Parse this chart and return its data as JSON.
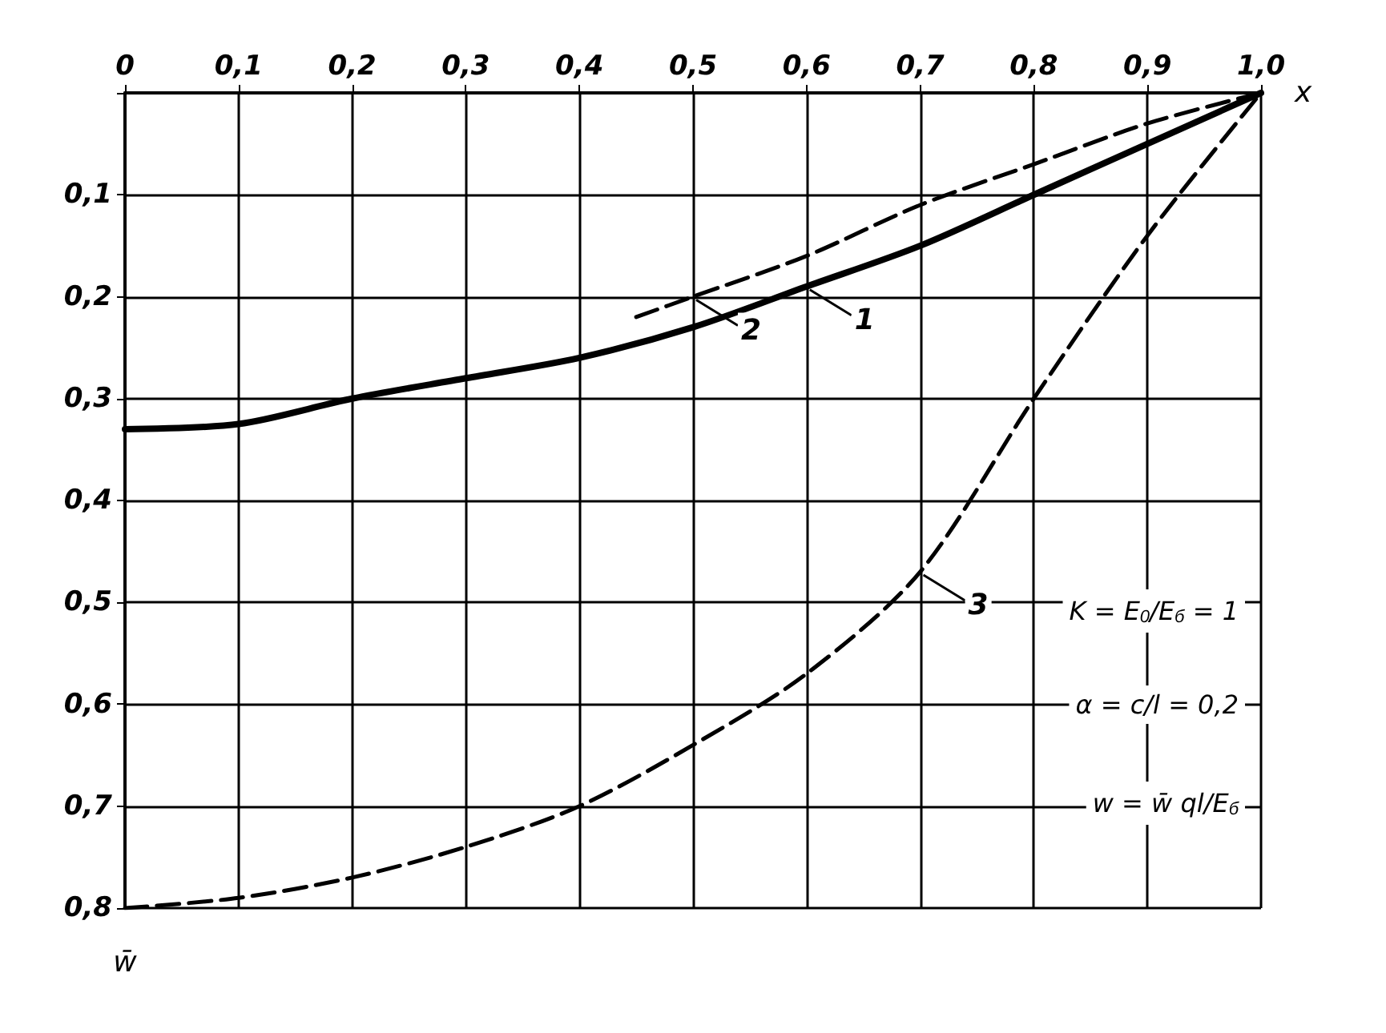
{
  "chart_data": {
    "type": "line",
    "xlabel": "x",
    "ylabel": "w̄",
    "xlim": [
      0,
      1
    ],
    "ylim": [
      0.8,
      0
    ],
    "xticks": [
      {
        "value": 0,
        "label": "0"
      },
      {
        "value": 0.1,
        "label": "0,1"
      },
      {
        "value": 0.2,
        "label": "0,2"
      },
      {
        "value": 0.3,
        "label": "0,3"
      },
      {
        "value": 0.4,
        "label": "0,4"
      },
      {
        "value": 0.5,
        "label": "0,5"
      },
      {
        "value": 0.6,
        "label": "0,6"
      },
      {
        "value": 0.7,
        "label": "0,7"
      },
      {
        "value": 0.8,
        "label": "0,8"
      },
      {
        "value": 0.9,
        "label": "0,9"
      },
      {
        "value": 1,
        "label": "1,0"
      }
    ],
    "yticks": [
      {
        "value": 0,
        "label": null
      },
      {
        "value": 0.1,
        "label": "0,1"
      },
      {
        "value": 0.2,
        "label": "0,2"
      },
      {
        "value": 0.3,
        "label": "0,3"
      },
      {
        "value": 0.4,
        "label": "0,4"
      },
      {
        "value": 0.5,
        "label": "0,5"
      },
      {
        "value": 0.6,
        "label": "0,6"
      },
      {
        "value": 0.7,
        "label": "0,7"
      },
      {
        "value": 0.8,
        "label": "0,8"
      }
    ],
    "grid": true,
    "marker": "none",
    "series": [
      {
        "color": "#000000",
        "line_style": "solid",
        "x": [
          0,
          0.1,
          0.2,
          0.3,
          0.4,
          0.5,
          0.6,
          0.7,
          0.8,
          0.9,
          1.0
        ],
        "values": [
          0.33,
          0.325,
          0.3,
          0.28,
          0.26,
          0.23,
          0.19,
          0.15,
          0.1,
          0.05,
          0
        ]
      },
      {
        "color": "#000000",
        "line_style": "dashed",
        "x": [
          0.45,
          0.5,
          0.6,
          0.7,
          0.8,
          0.9,
          1.0
        ],
        "values": [
          0.22,
          0.2,
          0.16,
          0.11,
          0.07,
          0.03,
          0
        ]
      },
      {
        "color": "#000000",
        "line_style": "dashed",
        "x": [
          0,
          0.1,
          0.2,
          0.3,
          0.4,
          0.5,
          0.6,
          0.7,
          0.8,
          0.9,
          1.0
        ],
        "values": [
          0.8,
          0.79,
          0.77,
          0.74,
          0.7,
          0.64,
          0.57,
          0.47,
          0.3,
          0.14,
          0
        ]
      }
    ],
    "annotations": [
      {
        "text": "1",
        "x": 0.6,
        "y": 0.19
      },
      {
        "text": "2",
        "x": 0.5,
        "y": 0.2
      },
      {
        "text": "3",
        "x": 0.7,
        "y": 0.47
      },
      "K = E$_{0}$/E$_{б}$ = 1",
      "α = c/l = 0,2",
      "w = w̄ ql/E$_{б}$"
    ]
  }
}
